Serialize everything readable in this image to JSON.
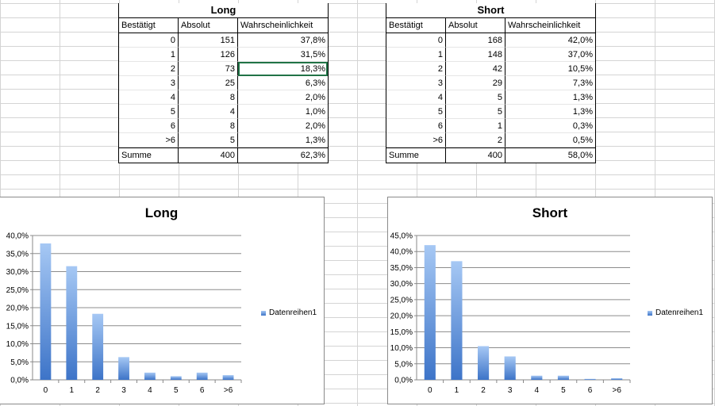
{
  "tables": [
    {
      "title": "Long",
      "headers": [
        "Bestätigt",
        "Absolut",
        "Wahrscheinlichkeit"
      ],
      "rows": [
        [
          "0",
          "151",
          "37,8%"
        ],
        [
          "1",
          "126",
          "31,5%"
        ],
        [
          "2",
          "73",
          "18,3%"
        ],
        [
          "3",
          "25",
          "6,3%"
        ],
        [
          "4",
          "8",
          "2,0%"
        ],
        [
          "5",
          "4",
          "1,0%"
        ],
        [
          "6",
          "8",
          "2,0%"
        ],
        [
          ">6",
          "5",
          "1,3%"
        ]
      ],
      "sum": [
        "Summe",
        "400",
        "62,3%"
      ]
    },
    {
      "title": "Short",
      "headers": [
        "Bestätigt",
        "Absolut",
        "Wahrscheinlichkeit"
      ],
      "rows": [
        [
          "0",
          "168",
          "42,0%"
        ],
        [
          "1",
          "148",
          "37,0%"
        ],
        [
          "2",
          "42",
          "10,5%"
        ],
        [
          "3",
          "29",
          "7,3%"
        ],
        [
          "4",
          "5",
          "1,3%"
        ],
        [
          "5",
          "5",
          "1,3%"
        ],
        [
          "6",
          "1",
          "0,3%"
        ],
        [
          ">6",
          "2",
          "0,5%"
        ]
      ],
      "sum": [
        "Summe",
        "400",
        "58,0%"
      ]
    }
  ],
  "chart_data": [
    {
      "type": "bar",
      "title": "Long",
      "categories": [
        "0",
        "1",
        "2",
        "3",
        "4",
        "5",
        "6",
        ">6"
      ],
      "series": [
        {
          "name": "Datenreihen1",
          "values": [
            37.8,
            31.5,
            18.3,
            6.3,
            2.0,
            1.0,
            2.0,
            1.3
          ]
        }
      ],
      "ylim": [
        0,
        40
      ],
      "yticks": [
        "0,0%",
        "5,0%",
        "10,0%",
        "15,0%",
        "20,0%",
        "25,0%",
        "30,0%",
        "35,0%",
        "40,0%"
      ],
      "legend": "right",
      "grid": true
    },
    {
      "type": "bar",
      "title": "Short",
      "categories": [
        "0",
        "1",
        "2",
        "3",
        "4",
        "5",
        "6",
        ">6"
      ],
      "series": [
        {
          "name": "Datenreihen1",
          "values": [
            42.0,
            37.0,
            10.5,
            7.3,
            1.3,
            1.3,
            0.3,
            0.5
          ]
        }
      ],
      "ylim": [
        0,
        45
      ],
      "yticks": [
        "0,0%",
        "5,0%",
        "10,0%",
        "15,0%",
        "20,0%",
        "25,0%",
        "30,0%",
        "35,0%",
        "40,0%",
        "45,0%"
      ],
      "legend": "right",
      "grid": true
    }
  ],
  "colors": {
    "bar_top": "#a6c8f4",
    "bar_bottom": "#3d74c8",
    "selection": "#217346"
  }
}
